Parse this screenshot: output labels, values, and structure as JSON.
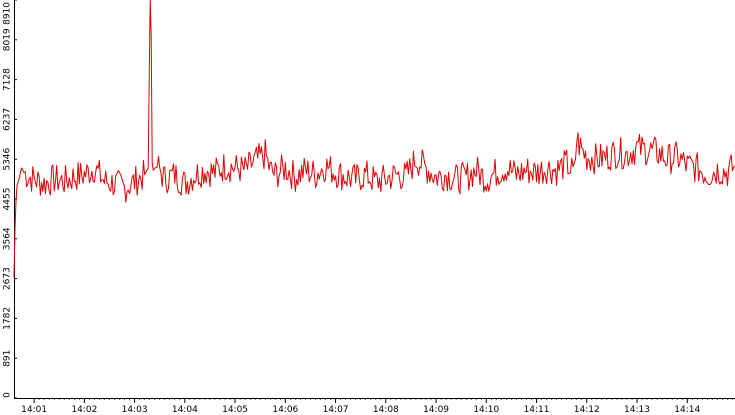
{
  "chart_data": {
    "type": "line",
    "title": "",
    "xlabel": "",
    "ylabel": "",
    "ylim": [
      0,
      8910
    ],
    "yticks": [
      "0",
      "891",
      "1782",
      "2673",
      "3564",
      "4455",
      "5346",
      "6237",
      "7128",
      "8019",
      "8910"
    ],
    "xticks": [
      "14:01",
      "14:02",
      "14:03",
      "14:04",
      "14:05",
      "14:06",
      "14:07",
      "14:08",
      "14:09",
      "14:10",
      "14:11",
      "14:12",
      "14:13",
      "14:14"
    ],
    "xrange_minutes": [
      0.6,
      14.95
    ],
    "grid": false,
    "legend": "none",
    "series": [
      {
        "color": "#dd0000",
        "x": [
          0.6,
          0.62,
          0.64,
          0.66,
          0.7,
          0.75,
          0.8,
          0.9,
          1.0,
          1.2,
          1.4,
          1.6,
          1.8,
          2.0,
          2.2,
          2.4,
          2.6,
          2.8,
          3.0,
          3.2,
          3.27,
          3.3,
          3.31,
          3.33,
          3.35,
          3.37,
          3.45,
          3.6,
          3.8,
          4.0,
          4.2,
          4.4,
          4.6,
          4.8,
          5.0,
          5.2,
          5.4,
          5.6,
          5.7,
          5.8,
          6.0,
          6.2,
          6.4,
          6.6,
          6.8,
          7.0,
          7.2,
          7.4,
          7.6,
          7.8,
          8.0,
          8.2,
          8.4,
          8.6,
          8.8,
          9.0,
          9.2,
          9.4,
          9.6,
          9.8,
          10.0,
          10.2,
          10.4,
          10.6,
          10.8,
          11.0,
          11.2,
          11.4,
          11.6,
          11.75,
          11.8,
          11.9,
          12.0,
          12.2,
          12.4,
          12.6,
          12.8,
          13.0,
          13.2,
          13.4,
          13.6,
          13.8,
          14.0,
          14.2,
          14.4,
          14.6,
          14.8,
          14.95
        ],
        "y": [
          2700,
          3800,
          4400,
          4750,
          4900,
          5150,
          5050,
          4950,
          4900,
          4800,
          4900,
          4850,
          4950,
          5000,
          5150,
          4850,
          4800,
          4700,
          4850,
          5000,
          5150,
          8100,
          8910,
          8100,
          5250,
          5100,
          5200,
          4900,
          5000,
          4800,
          5000,
          5100,
          5050,
          5200,
          5150,
          5100,
          5300,
          5450,
          5100,
          5000,
          5150,
          4950,
          5100,
          5000,
          5200,
          5050,
          4950,
          4900,
          5000,
          4850,
          4900,
          5000,
          4950,
          5350,
          5150,
          4950,
          5000,
          4900,
          4950,
          5100,
          4900,
          5050,
          5150,
          5000,
          5100,
          5050,
          5150,
          5100,
          5250,
          5000,
          5800,
          5550,
          5400,
          5350,
          5400,
          5500,
          5450,
          5600,
          5550,
          5500,
          5350,
          5400,
          5200,
          5150,
          5000,
          5100,
          5050,
          5200
        ]
      }
    ]
  }
}
